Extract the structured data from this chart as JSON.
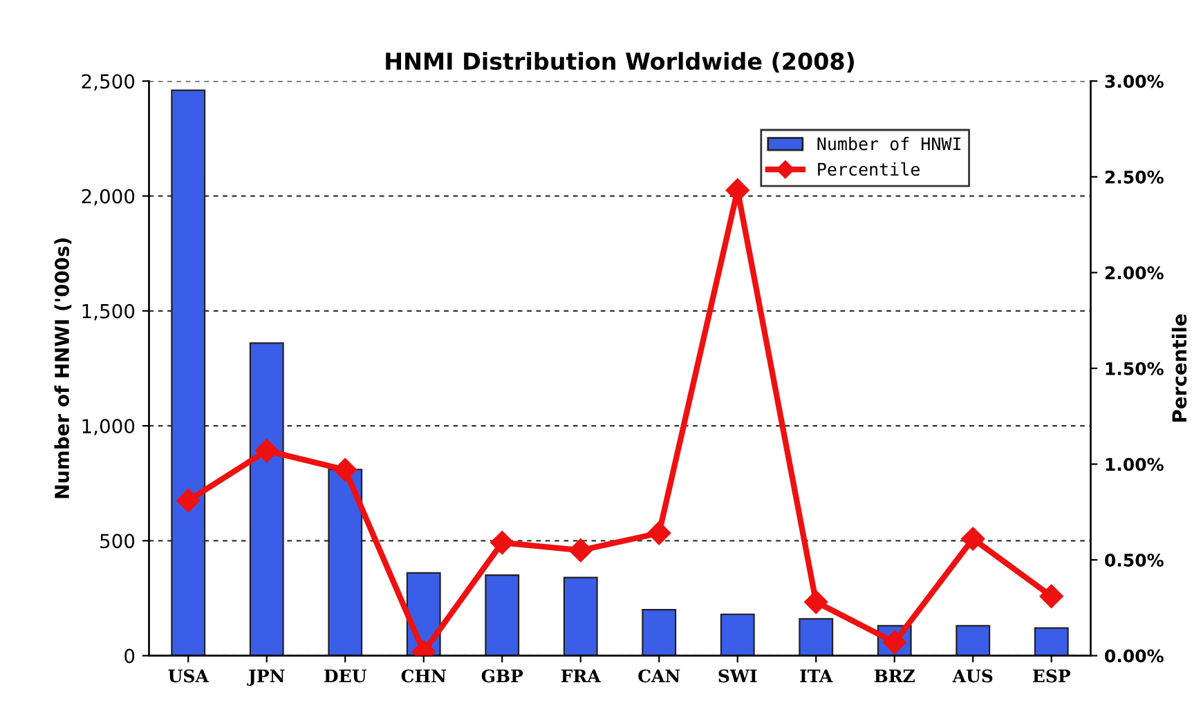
{
  "chart_data": {
    "type": "bar",
    "title": "HNMI Distribution Worldwide (2008)",
    "ylabel": "Number of HNWI ('000s)",
    "y2label": "Percentile",
    "categories": [
      "USA",
      "JPN",
      "DEU",
      "CHN",
      "GBP",
      "FRA",
      "CAN",
      "SWI",
      "ITA",
      "BRZ",
      "AUS",
      "ESP"
    ],
    "series": [
      {
        "name": "Number of HNWI",
        "color": "#3a5ee8",
        "values": [
          2460,
          1360,
          810,
          360,
          350,
          340,
          200,
          180,
          160,
          130,
          130,
          120
        ]
      },
      {
        "name": "Percentile",
        "type": "line",
        "axis": "y2",
        "color": "#ee1111",
        "marker": "diamond",
        "values": [
          0.81,
          1.07,
          0.97,
          0.02,
          0.59,
          0.55,
          0.64,
          2.43,
          0.28,
          0.07,
          0.61,
          0.31
        ]
      }
    ],
    "ylim": [
      0,
      2500
    ],
    "yticks": [
      {
        "value": 0,
        "label": "0"
      },
      {
        "value": 500,
        "label": "500"
      },
      {
        "value": 1000,
        "label": "1,000"
      },
      {
        "value": 1500,
        "label": "1,500"
      },
      {
        "value": 2000,
        "label": "2,000"
      },
      {
        "value": 2500,
        "label": "2,500"
      }
    ],
    "y2lim": [
      0,
      3
    ],
    "y2ticks": [
      {
        "value": 0,
        "label": "0.00%"
      },
      {
        "value": 0.5,
        "label": "0.50%"
      },
      {
        "value": 1,
        "label": "1.00%"
      },
      {
        "value": 1.5,
        "label": "1.50%"
      },
      {
        "value": 2,
        "label": "2.00%"
      },
      {
        "value": 2.5,
        "label": "2.50%"
      },
      {
        "value": 3,
        "label": "3.00%"
      }
    ],
    "grid": "y",
    "legend": "top right"
  }
}
